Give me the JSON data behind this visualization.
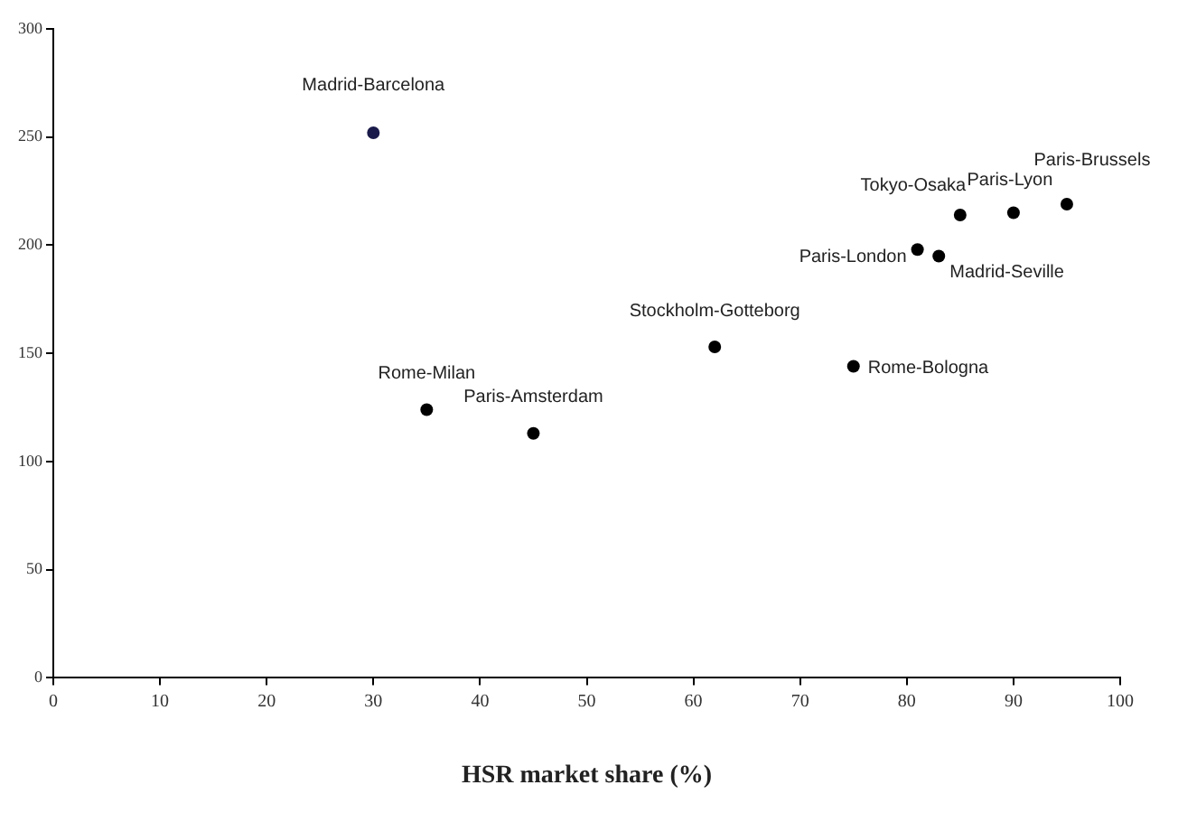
{
  "chart_data": {
    "type": "scatter",
    "xlabel": "HSR market share (%)",
    "x": [
      30,
      35,
      45,
      62,
      75,
      81,
      83,
      85,
      90,
      95
    ],
    "values": [
      252,
      124,
      113,
      153,
      144,
      198,
      195,
      214,
      215,
      219
    ],
    "colors": [
      "#1a1a4a",
      "#000000",
      "#000000",
      "#000000",
      "#000000",
      "#000000",
      "#000000",
      "#000000",
      "#000000",
      "#000000"
    ],
    "xlim": [
      0,
      100
    ],
    "xticks": [
      0,
      10,
      20,
      30,
      40,
      50,
      60,
      70,
      80,
      90,
      100
    ],
    "ylim": [
      0,
      300
    ],
    "yticks": [
      0,
      50,
      100,
      150,
      200,
      250,
      300
    ],
    "grid": false,
    "legend": false,
    "marker": "circle",
    "annotations": [
      {
        "text": "Madrid-Barcelona",
        "x": 30,
        "y": 252
      },
      {
        "text": "Rome-Milan",
        "x": 35,
        "y": 124
      },
      {
        "text": "Paris-Amsterdam",
        "x": 45,
        "y": 113
      },
      {
        "text": "Stockholm-Gotteborg",
        "x": 62,
        "y": 153
      },
      {
        "text": "Rome-Bologna",
        "x": 75,
        "y": 144
      },
      {
        "text": "Paris-London",
        "x": 81,
        "y": 198
      },
      {
        "text": "Madrid-Seville",
        "x": 83,
        "y": 195
      },
      {
        "text": "Tokyo-Osaka",
        "x": 85,
        "y": 214
      },
      {
        "text": "Paris-Lyon",
        "x": 90,
        "y": 215
      },
      {
        "text": "Paris-Brussels",
        "x": 95,
        "y": 219
      }
    ]
  }
}
